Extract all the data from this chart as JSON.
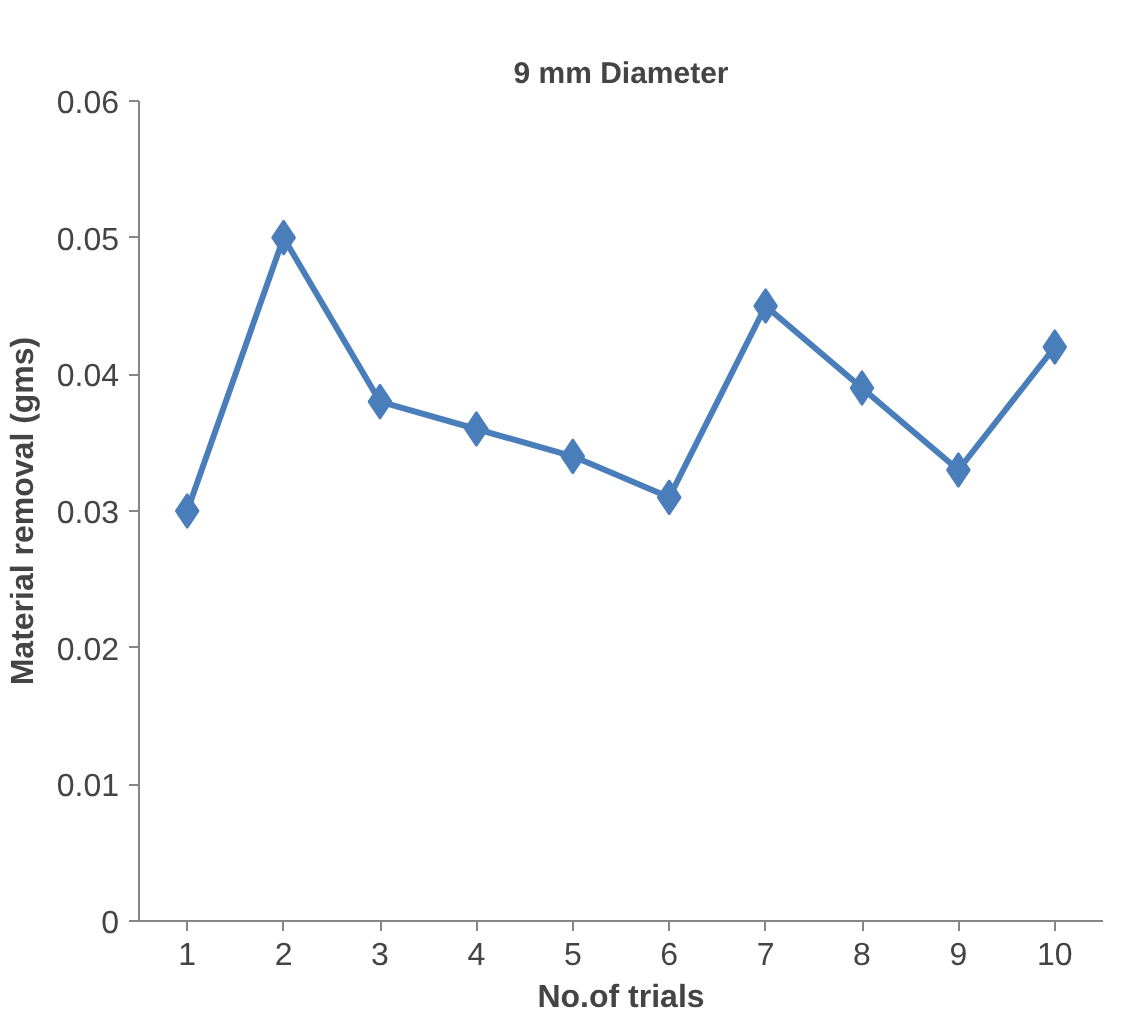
{
  "chart_data": {
    "type": "line",
    "title": "9 mm Diameter",
    "xlabel": "No.of trials",
    "ylabel": "Material removal (gms)",
    "categories": [
      "1",
      "2",
      "3",
      "4",
      "5",
      "6",
      "7",
      "8",
      "9",
      "10"
    ],
    "series": [
      {
        "color": "#4a7ebb",
        "values": [
          0.03,
          0.05,
          0.038,
          0.036,
          0.034,
          0.031,
          0.045,
          0.039,
          0.033,
          0.042
        ]
      }
    ],
    "ylim": [
      0,
      0.06
    ],
    "yticks": [
      0,
      0.01,
      0.02,
      0.03,
      0.04,
      0.05,
      0.06
    ],
    "grid": false,
    "marker": "diamond",
    "line_style": "solid"
  }
}
